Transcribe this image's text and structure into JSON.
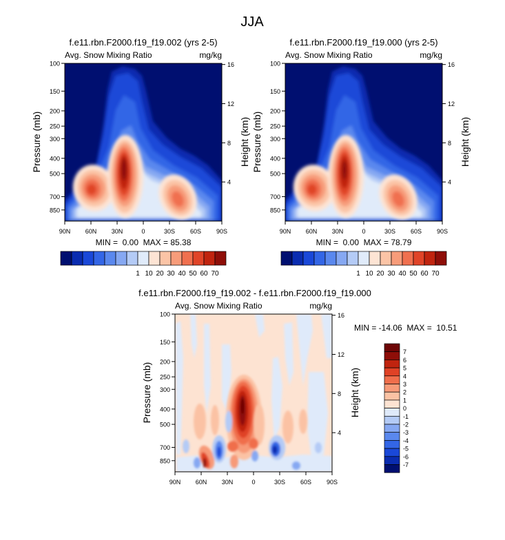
{
  "figure_title": "JJA",
  "chart_data": [
    {
      "type": "contour",
      "title": "f.e11.rbn.F2000.f19_f19.002 (yrs 2-5)",
      "left_label": "Avg. Snow Mixing Ratio",
      "right_label": "mg/kg",
      "ylabel": "Pressure (mb)",
      "ylabel_right": "Height (km)",
      "xticks": [
        "90N",
        "60N",
        "30N",
        "0",
        "30S",
        "60S",
        "90S"
      ],
      "pressure_ticks": [
        100,
        150,
        200,
        250,
        300,
        400,
        500,
        700,
        850
      ],
      "height_ticks": [
        16,
        12,
        8,
        4
      ],
      "ylim": [
        100,
        1000
      ],
      "min": "0.00",
      "max": "85.38",
      "stats_text": "MIN =  0.00  MAX = 85.38",
      "levels": [
        1,
        10,
        20,
        30,
        40,
        50,
        60,
        70
      ],
      "colorbar_labels": [
        "1",
        "10",
        "20",
        "30",
        "40",
        "50",
        "60",
        "70"
      ]
    },
    {
      "type": "contour",
      "title": "f.e11.rbn.F2000.f19_f19.000 (yrs 2-5)",
      "left_label": "Avg. Snow Mixing Ratio",
      "right_label": "mg/kg",
      "ylabel": "Pressure (mb)",
      "ylabel_right": "Height (km)",
      "xticks": [
        "90N",
        "60N",
        "30N",
        "0",
        "30S",
        "60S",
        "90S"
      ],
      "pressure_ticks": [
        100,
        150,
        200,
        250,
        300,
        400,
        500,
        700,
        850
      ],
      "height_ticks": [
        16,
        12,
        8,
        4
      ],
      "ylim": [
        100,
        1000
      ],
      "min": "0.00",
      "max": "78.79",
      "stats_text": "MIN =  0.00  MAX = 78.79",
      "levels": [
        1,
        10,
        20,
        30,
        40,
        50,
        60,
        70
      ],
      "colorbar_labels": [
        "1",
        "10",
        "20",
        "30",
        "40",
        "50",
        "60",
        "70"
      ]
    },
    {
      "type": "contour",
      "title": "f.e11.rbn.F2000.f19_f19.002 - f.e11.rbn.F2000.f19_f19.000",
      "left_label": "Avg. Snow Mixing Ratio",
      "right_label": "mg/kg",
      "ylabel": "Pressure (mb)",
      "ylabel_right": "Height (km)",
      "xticks": [
        "90N",
        "60N",
        "30N",
        "0",
        "30S",
        "60S",
        "90S"
      ],
      "pressure_ticks": [
        100,
        150,
        200,
        250,
        300,
        400,
        500,
        700,
        850
      ],
      "height_ticks": [
        16,
        12,
        8,
        4
      ],
      "ylim": [
        100,
        1000
      ],
      "min": "-14.06",
      "max": "10.51",
      "stats_text": "MIN = -14.06  MAX =  10.51",
      "levels": [
        -7,
        -6,
        -5,
        -4,
        -3,
        -2,
        -1,
        0,
        1,
        2,
        3,
        4,
        5,
        6,
        7
      ],
      "colorbar_labels": [
        "7",
        "6",
        "5",
        "4",
        "3",
        "2",
        "1",
        "0",
        "-1",
        "-2",
        "-3",
        "-4",
        "-5",
        "-6",
        "-7"
      ]
    }
  ],
  "colors": {
    "seq": [
      "#000f70",
      "#0a2cb0",
      "#1a48d8",
      "#3366e6",
      "#5a88ee",
      "#86a8f2",
      "#b4cbf6",
      "#e0ebfa",
      "#fde4d4",
      "#fbc4a6",
      "#f79c7a",
      "#f0704f",
      "#e04428",
      "#c0240f",
      "#8e0e08"
    ],
    "div": [
      "#000f70",
      "#0a2cb0",
      "#1a48d8",
      "#3366e6",
      "#5a88ee",
      "#86a8f2",
      "#b4cbf6",
      "#dfeafa",
      "#fde3d2",
      "#fbc2a4",
      "#f79a78",
      "#f06e4c",
      "#e04226",
      "#c0240f",
      "#8e0e08",
      "#6e0606"
    ]
  }
}
